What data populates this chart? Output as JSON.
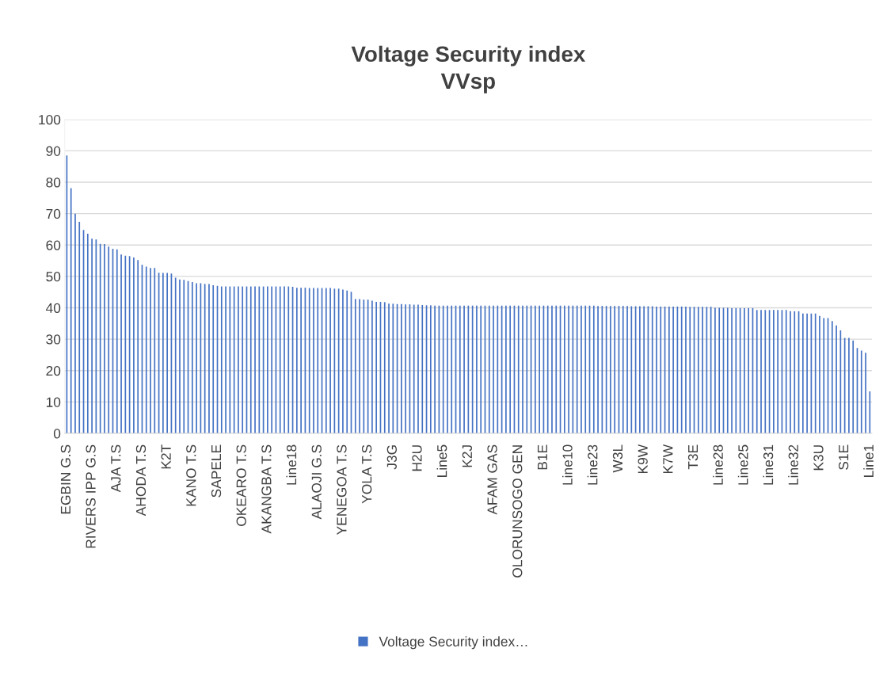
{
  "chart_data": {
    "type": "bar",
    "title": "Voltage Security index\nVVsp",
    "categories": [
      "EGBIN G.S",
      null,
      null,
      null,
      null,
      null,
      "RIVERS IPP G.S",
      null,
      null,
      null,
      null,
      null,
      "AJA T.S",
      null,
      null,
      null,
      null,
      null,
      "AHODA T.S",
      null,
      null,
      null,
      null,
      null,
      "K2T",
      null,
      null,
      null,
      null,
      null,
      "KANO T.S",
      null,
      null,
      null,
      null,
      null,
      "SAPELE",
      null,
      null,
      null,
      null,
      null,
      "OKEARO T.S",
      null,
      null,
      null,
      null,
      null,
      "AKANGBA T.S",
      null,
      null,
      null,
      null,
      null,
      "Line18",
      null,
      null,
      null,
      null,
      null,
      "ALAOJI G.S",
      null,
      null,
      null,
      null,
      null,
      "YENEGOA T.S",
      null,
      null,
      null,
      null,
      null,
      "YOLA T.S",
      null,
      null,
      null,
      null,
      null,
      "J3G",
      null,
      null,
      null,
      null,
      null,
      "H2U",
      null,
      null,
      null,
      null,
      null,
      "Line5",
      null,
      null,
      null,
      null,
      null,
      "K2J",
      null,
      null,
      null,
      null,
      null,
      "AFAM GAS",
      null,
      null,
      null,
      null,
      null,
      "OLORUNSOGO GEN",
      null,
      null,
      null,
      null,
      null,
      "B1E",
      null,
      null,
      null,
      null,
      null,
      "Line10",
      null,
      null,
      null,
      null,
      null,
      "Line23",
      null,
      null,
      null,
      null,
      null,
      "W3L",
      null,
      null,
      null,
      null,
      null,
      "K9W",
      null,
      null,
      null,
      null,
      null,
      "K7W",
      null,
      null,
      null,
      null,
      null,
      "T3E",
      null,
      null,
      null,
      null,
      null,
      "Line28",
      null,
      null,
      null,
      null,
      null,
      "Line25",
      null,
      null,
      null,
      null,
      null,
      "Line31",
      null,
      null,
      null,
      null,
      null,
      "Line32",
      null,
      null,
      null,
      null,
      null,
      "K3U",
      null,
      null,
      null,
      null,
      null,
      "S1E",
      null,
      null,
      null,
      null,
      null,
      "Line1"
    ],
    "series": [
      {
        "name": "Voltage Security index…",
        "color": "#4472c4",
        "values": [
          88.5,
          78.1,
          70.0,
          67.4,
          64.8,
          63.6,
          62.0,
          61.8,
          60.4,
          60.3,
          59.5,
          58.8,
          58.6,
          57.0,
          56.6,
          56.5,
          56.0,
          55.2,
          53.7,
          53.1,
          52.7,
          52.7,
          51.2,
          51.1,
          51.1,
          50.9,
          49.6,
          49.0,
          48.9,
          48.5,
          48.2,
          47.8,
          47.8,
          47.6,
          47.6,
          47.2,
          47.0,
          46.8,
          46.8,
          46.8,
          46.8,
          46.8,
          46.8,
          46.8,
          46.8,
          46.8,
          46.8,
          46.8,
          46.8,
          46.8,
          46.8,
          46.8,
          46.8,
          46.8,
          46.7,
          46.4,
          46.4,
          46.4,
          46.3,
          46.3,
          46.3,
          46.3,
          46.3,
          46.3,
          46.1,
          46.1,
          45.8,
          45.5,
          45.1,
          42.8,
          42.8,
          42.6,
          42.6,
          42.3,
          41.9,
          41.9,
          41.8,
          41.3,
          41.3,
          41.2,
          41.2,
          41.1,
          41.1,
          41.0,
          41.0,
          40.9,
          40.8,
          40.8,
          40.7,
          40.7,
          40.7,
          40.7,
          40.7,
          40.7,
          40.7,
          40.7,
          40.7,
          40.7,
          40.7,
          40.7,
          40.7,
          40.7,
          40.7,
          40.7,
          40.7,
          40.7,
          40.7,
          40.7,
          40.7,
          40.7,
          40.7,
          40.7,
          40.7,
          40.7,
          40.7,
          40.7,
          40.7,
          40.7,
          40.7,
          40.7,
          40.7,
          40.7,
          40.7,
          40.7,
          40.7,
          40.7,
          40.7,
          40.6,
          40.6,
          40.6,
          40.6,
          40.6,
          40.6,
          40.6,
          40.6,
          40.5,
          40.5,
          40.5,
          40.5,
          40.5,
          40.5,
          40.4,
          40.4,
          40.4,
          40.4,
          40.4,
          40.4,
          40.4,
          40.4,
          40.3,
          40.3,
          40.3,
          40.3,
          40.3,
          40.3,
          40.0,
          40.0,
          40.0,
          40.0,
          39.9,
          39.9,
          39.9,
          39.9,
          39.9,
          39.9,
          39.3,
          39.3,
          39.3,
          39.3,
          39.3,
          39.3,
          39.3,
          39.3,
          38.9,
          38.9,
          38.9,
          38.2,
          38.2,
          38.2,
          38.2,
          37.4,
          36.7,
          36.7,
          35.8,
          34.4,
          32.8,
          30.4,
          30.4,
          29.6,
          27.2,
          26.4,
          25.7,
          13.4
        ]
      }
    ],
    "ylim": [
      0,
      100
    ],
    "yticks": [
      0,
      10,
      20,
      30,
      40,
      50,
      60,
      70,
      80,
      90,
      100
    ],
    "grid": "y",
    "legend": "bottom"
  }
}
